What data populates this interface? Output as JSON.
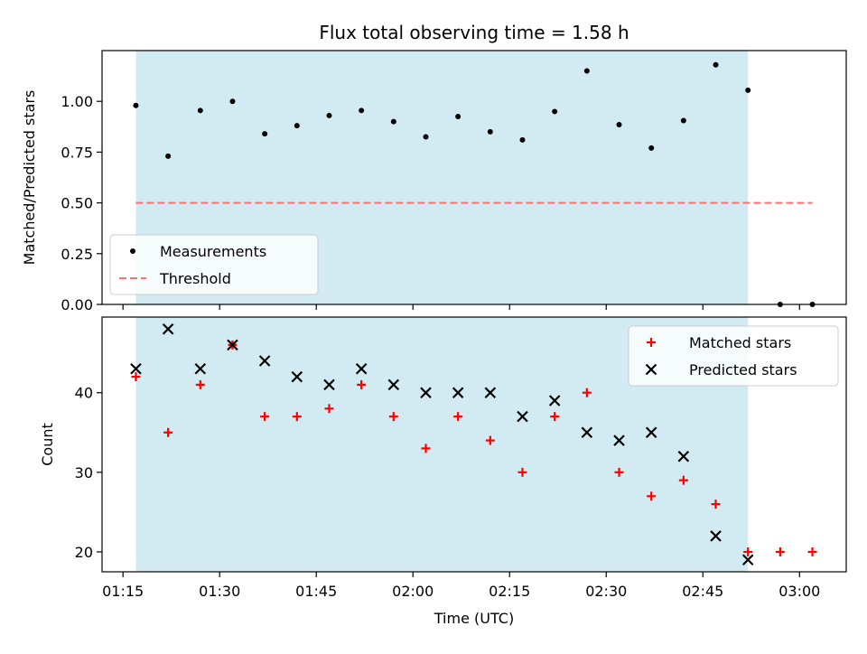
{
  "chart_data": [
    {
      "type": "scatter",
      "title": "Flux total observing time = 1.58 h",
      "ylabel": "Matched/Predicted stars",
      "xlabel": "",
      "ylim": [
        0.0,
        1.25
      ],
      "yticks": [
        0.0,
        0.25,
        0.5,
        0.75,
        1.0
      ],
      "ytick_labels": [
        "0.00",
        "0.25",
        "0.50",
        "0.75",
        "1.00"
      ],
      "shaded_interval": [
        "01:17",
        "02:52"
      ],
      "shade_color": "#add8e6",
      "legend": {
        "position": "lower-left",
        "entries": [
          "Measurements",
          "Threshold"
        ]
      },
      "series": [
        {
          "name": "Measurements",
          "marker": "dot",
          "color": "#000000",
          "x": [
            "01:17",
            "01:22",
            "01:27",
            "01:32",
            "01:37",
            "01:42",
            "01:47",
            "01:52",
            "01:57",
            "02:02",
            "02:07",
            "02:12",
            "02:17",
            "02:22",
            "02:27",
            "02:32",
            "02:37",
            "02:42",
            "02:47",
            "02:52",
            "02:57",
            "03:02"
          ],
          "y": [
            0.98,
            0.73,
            0.955,
            1.0,
            0.84,
            0.88,
            0.93,
            0.955,
            0.9,
            0.825,
            0.925,
            0.85,
            0.81,
            0.95,
            1.15,
            0.885,
            0.77,
            0.905,
            1.18,
            1.055,
            0.0,
            0.0
          ]
        },
        {
          "name": "Threshold",
          "line": "dashed",
          "color": "#ff7070",
          "x": [
            "01:17",
            "03:02"
          ],
          "y": [
            0.5,
            0.5
          ]
        }
      ]
    },
    {
      "type": "scatter",
      "title": "",
      "xlabel": "Time (UTC)",
      "ylabel": "Count",
      "ylim": [
        17.5,
        49.5
      ],
      "yticks": [
        20,
        30,
        40
      ],
      "ytick_labels": [
        "20",
        "30",
        "40"
      ],
      "xticks": [
        "01:15",
        "01:30",
        "01:45",
        "02:00",
        "02:15",
        "02:30",
        "02:45",
        "03:00"
      ],
      "shaded_interval": [
        "01:17",
        "02:52"
      ],
      "shade_color": "#add8e6",
      "legend": {
        "position": "upper-right",
        "entries": [
          "Matched stars",
          "Predicted stars"
        ]
      },
      "series": [
        {
          "name": "Matched stars",
          "marker": "plus",
          "color": "#ff0000",
          "x": [
            "01:17",
            "01:22",
            "01:27",
            "01:32",
            "01:37",
            "01:42",
            "01:47",
            "01:52",
            "01:57",
            "02:02",
            "02:07",
            "02:12",
            "02:17",
            "02:22",
            "02:27",
            "02:32",
            "02:37",
            "02:42",
            "02:47",
            "02:52",
            "02:57",
            "03:02"
          ],
          "y": [
            42,
            35,
            41,
            46,
            37,
            37,
            38,
            41,
            37,
            33,
            37,
            34,
            30,
            37,
            40,
            30,
            27,
            29,
            26,
            20,
            20,
            20
          ]
        },
        {
          "name": "Predicted stars",
          "marker": "x",
          "color": "#000000",
          "x": [
            "01:17",
            "01:22",
            "01:27",
            "01:32",
            "01:37",
            "01:42",
            "01:47",
            "01:52",
            "01:57",
            "02:02",
            "02:07",
            "02:12",
            "02:17",
            "02:22",
            "02:27",
            "02:32",
            "02:37",
            "02:42",
            "02:47",
            "02:52"
          ],
          "y": [
            43,
            48,
            43,
            46,
            44,
            42,
            41,
            43,
            41,
            40,
            40,
            40,
            37,
            39,
            35,
            34,
            35,
            32,
            22,
            19
          ]
        }
      ]
    }
  ]
}
